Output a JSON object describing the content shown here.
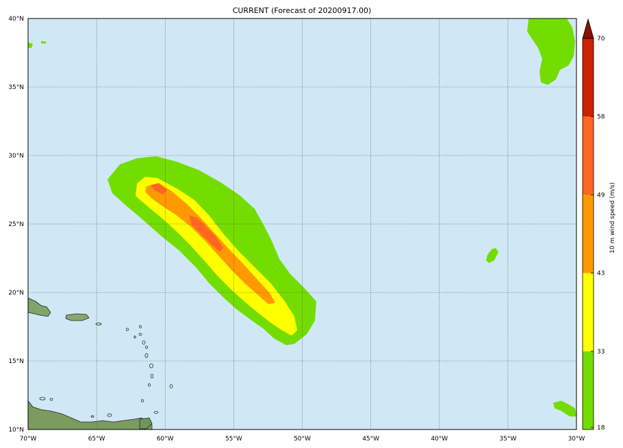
{
  "title": "CURRENT (Forecast of 20200917.00)",
  "map": {
    "lon_range": [
      -70,
      -30
    ],
    "lat_range": [
      10,
      40
    ],
    "lon_ticks": [
      {
        "value": -70,
        "label": "70°W"
      },
      {
        "value": -65,
        "label": "65°W"
      },
      {
        "value": -60,
        "label": "60°W"
      },
      {
        "value": -55,
        "label": "55°W"
      },
      {
        "value": -50,
        "label": "50°W"
      },
      {
        "value": -45,
        "label": "45°W"
      },
      {
        "value": -40,
        "label": "40°W"
      },
      {
        "value": -35,
        "label": "35°W"
      },
      {
        "value": -30,
        "label": "30°W"
      }
    ],
    "lat_ticks": [
      {
        "value": 40,
        "label": "40°N"
      },
      {
        "value": 35,
        "label": "35°N"
      },
      {
        "value": 30,
        "label": "30°N"
      },
      {
        "value": 25,
        "label": "25°N"
      },
      {
        "value": 20,
        "label": "20°N"
      },
      {
        "value": 15,
        "label": "15°N"
      },
      {
        "value": 10,
        "label": "10°N"
      }
    ],
    "grid": true,
    "ocean_color": "#d0e8f6",
    "grid_color": "#555555"
  },
  "colorbar": {
    "label": "10 m wind speed (m/s)",
    "ticks": [
      "18",
      "33",
      "43",
      "49",
      "58",
      "70"
    ],
    "levels": [
      18,
      33,
      43,
      49,
      58,
      70
    ],
    "colors": [
      "#74dd00",
      "#ffff00",
      "#ff9900",
      "#ff6622",
      "#cc2200"
    ],
    "extend_color": "#881100",
    "extend": "max"
  },
  "contour_colors": {
    "c18": "#74dd00",
    "c33": "#ffff00",
    "c43": "#ff9900",
    "c49": "#ff6622",
    "c58": "#cc2200"
  }
}
